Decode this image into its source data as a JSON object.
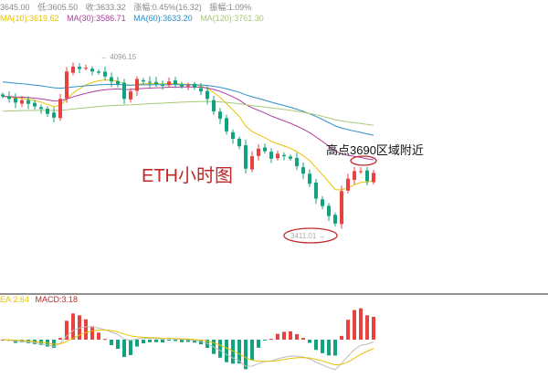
{
  "header": {
    "row1": [
      "3645.00",
      "低:3605.50",
      "收:3633.32",
      "涨幅:0.45%(16.32)",
      "振幅:1.09%"
    ],
    "ma": [
      {
        "label": "MA(10):3619.62",
        "color": "#e6c200"
      },
      {
        "label": "MA(30):3586.71",
        "color": "#b03aa0"
      },
      {
        "label": "MA(60):3633.20",
        "color": "#2a8fc8"
      },
      {
        "label": "MA(120):3761.30",
        "color": "#a8c878"
      }
    ]
  },
  "macd_header": {
    "dea": "EA:2.64",
    "macd": "MACD:3.18"
  },
  "annotations": {
    "title": "ETH小时图",
    "high_note": "高点3690区域附近",
    "max_label": "← 4096.15",
    "min_label": "3411.01 →"
  },
  "colors": {
    "up": "#e8423f",
    "down": "#10a37f",
    "annotation": "#c0282a"
  },
  "chart_data": {
    "type": "candlestick",
    "title": "ETH小时图",
    "ylim": [
      3300,
      4200
    ],
    "high": 4096.15,
    "low": 3411.01,
    "closes": [
      3940,
      3930,
      3915,
      3925,
      3910,
      3900,
      3890,
      3870,
      3855,
      3930,
      4040,
      4060,
      4050,
      4055,
      4040,
      4035,
      4020,
      4000,
      3990,
      3930,
      3960,
      4010,
      4000,
      3995,
      3990,
      3985,
      4000,
      3990,
      3980,
      3985,
      3975,
      3960,
      3930,
      3880,
      3850,
      3800,
      3770,
      3740,
      3650,
      3700,
      3730,
      3720,
      3690,
      3710,
      3700,
      3690,
      3660,
      3630,
      3590,
      3530,
      3500,
      3460,
      3430,
      3560,
      3610,
      3640,
      3640,
      3600,
      3633
    ]
  }
}
